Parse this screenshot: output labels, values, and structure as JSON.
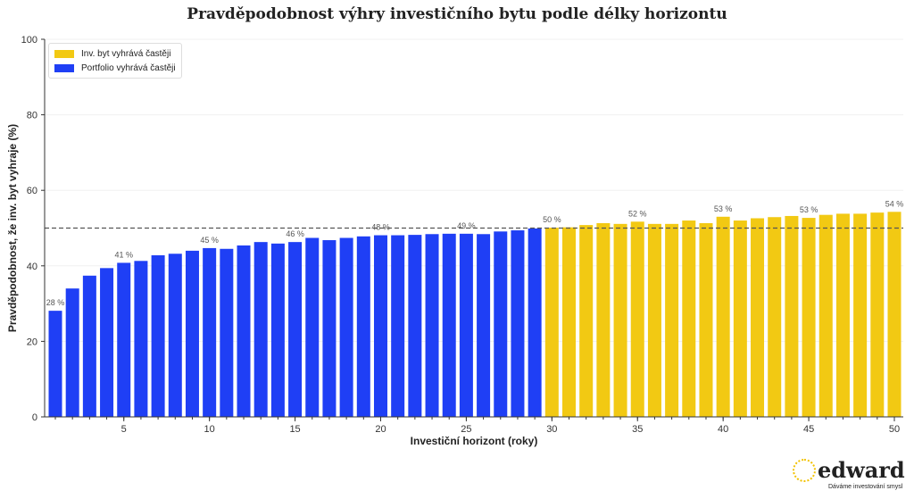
{
  "chart_data": {
    "type": "bar",
    "title": "Pravděpodobnost výhry investičního bytu podle délky horizontu",
    "xlabel": "Investiční horizont (roky)",
    "ylabel": "Pravděpodobnost, že inv. byt vyhraje (%)",
    "ylim": [
      0,
      100
    ],
    "yticks": [
      0,
      20,
      40,
      60,
      80,
      100
    ],
    "xticks": [
      5,
      10,
      15,
      20,
      25,
      30,
      35,
      40,
      45,
      50
    ],
    "x": [
      1,
      2,
      3,
      4,
      5,
      6,
      7,
      8,
      9,
      10,
      11,
      12,
      13,
      14,
      15,
      16,
      17,
      18,
      19,
      20,
      21,
      22,
      23,
      24,
      25,
      26,
      27,
      28,
      29,
      30,
      31,
      32,
      33,
      34,
      35,
      36,
      37,
      38,
      39,
      40,
      41,
      42,
      43,
      44,
      45,
      46,
      47,
      48,
      49,
      50
    ],
    "values": [
      28.1,
      34.0,
      37.4,
      39.4,
      40.8,
      41.3,
      42.8,
      43.2,
      44.0,
      44.7,
      44.5,
      45.4,
      46.3,
      45.9,
      46.3,
      47.4,
      46.8,
      47.4,
      47.8,
      48.1,
      48.1,
      48.2,
      48.4,
      48.5,
      48.5,
      48.4,
      49.1,
      49.4,
      49.9,
      50.1,
      50.2,
      50.8,
      51.3,
      51.1,
      51.7,
      51.1,
      51.1,
      52.0,
      51.3,
      53.0,
      52.0,
      52.6,
      52.9,
      53.2,
      52.7,
      53.5,
      53.8,
      53.8,
      54.1,
      54.3
    ],
    "data_labels": [
      {
        "x": 1,
        "text": "28 %"
      },
      {
        "x": 5,
        "text": "41 %"
      },
      {
        "x": 10,
        "text": "45 %"
      },
      {
        "x": 15,
        "text": "46 %"
      },
      {
        "x": 20,
        "text": "48 %"
      },
      {
        "x": 25,
        "text": "49 %"
      },
      {
        "x": 30,
        "text": "50 %"
      },
      {
        "x": 35,
        "text": "52 %"
      },
      {
        "x": 40,
        "text": "53 %"
      },
      {
        "x": 45,
        "text": "53 %"
      },
      {
        "x": 50,
        "text": "54 %"
      }
    ],
    "reference_line": 50,
    "threshold_rule": "bars >= 50 colored as 'Inv. byt vyhrává častěji'",
    "series": [
      {
        "name": "Inv. byt vyhrává častěji",
        "color": "#f2c913"
      },
      {
        "name": "Portfolio vyhrává častěji",
        "color": "#1f3ff5"
      }
    ],
    "legend": "top-left",
    "grid": "horizontal light"
  },
  "logo": {
    "word": "edward",
    "tagline": "Dáváme investování smysl"
  }
}
